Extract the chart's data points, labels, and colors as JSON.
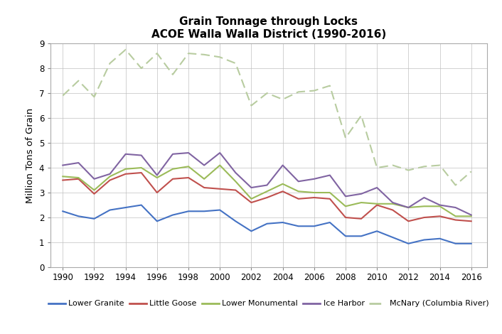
{
  "title_line1": "Grain Tonnage through Locks",
  "title_line2": "ACOE Walla Walla District (1990-2016)",
  "ylabel": "Million Tons of Grain",
  "years": [
    1990,
    1991,
    1992,
    1993,
    1994,
    1995,
    1996,
    1997,
    1998,
    1999,
    2000,
    2001,
    2002,
    2003,
    2004,
    2005,
    2006,
    2007,
    2008,
    2009,
    2010,
    2011,
    2012,
    2013,
    2014,
    2015,
    2016
  ],
  "lower_granite": [
    2.25,
    2.05,
    1.95,
    2.3,
    2.4,
    2.5,
    1.85,
    2.1,
    2.25,
    2.25,
    2.3,
    1.85,
    1.45,
    1.75,
    1.8,
    1.65,
    1.65,
    1.8,
    1.25,
    1.25,
    1.45,
    1.2,
    0.95,
    1.1,
    1.15,
    0.95,
    0.95
  ],
  "little_goose": [
    3.5,
    3.55,
    2.95,
    3.5,
    3.75,
    3.8,
    3.0,
    3.55,
    3.6,
    3.2,
    3.15,
    3.1,
    2.6,
    2.8,
    3.05,
    2.75,
    2.8,
    2.75,
    2.0,
    1.95,
    2.5,
    2.3,
    1.85,
    2.0,
    2.05,
    1.9,
    1.85
  ],
  "lower_monumental": [
    3.65,
    3.6,
    3.1,
    3.65,
    3.95,
    4.0,
    3.6,
    3.95,
    4.05,
    3.55,
    4.1,
    3.45,
    2.75,
    3.05,
    3.35,
    3.05,
    3.0,
    3.0,
    2.45,
    2.6,
    2.55,
    2.55,
    2.4,
    2.45,
    2.45,
    2.05,
    2.05
  ],
  "ice_harbor": [
    4.1,
    4.2,
    3.55,
    3.75,
    4.55,
    4.5,
    3.7,
    4.55,
    4.6,
    4.1,
    4.6,
    3.8,
    3.2,
    3.3,
    4.1,
    3.45,
    3.55,
    3.7,
    2.85,
    2.95,
    3.2,
    2.6,
    2.4,
    2.8,
    2.5,
    2.4,
    2.1
  ],
  "mcnary": [
    6.9,
    7.5,
    6.85,
    8.2,
    8.75,
    8.0,
    8.6,
    7.75,
    8.6,
    8.55,
    8.45,
    8.2,
    6.5,
    7.0,
    6.75,
    7.05,
    7.1,
    7.3,
    5.2,
    6.1,
    4.0,
    4.1,
    3.9,
    4.05,
    4.1,
    3.3,
    3.85
  ],
  "colors": {
    "lower_granite": "#4472C4",
    "little_goose": "#C0504D",
    "lower_monumental": "#9BBB59",
    "ice_harbor": "#8064A2",
    "mcnary": "#B8CCa0"
  },
  "ylim": [
    0,
    9
  ],
  "yticks": [
    0,
    1,
    2,
    3,
    4,
    5,
    6,
    7,
    8,
    9
  ],
  "xticks": [
    1990,
    1992,
    1994,
    1996,
    1998,
    2000,
    2002,
    2004,
    2006,
    2008,
    2010,
    2012,
    2014,
    2016
  ],
  "legend_labels": [
    "Lower Granite",
    "Little Goose",
    "Lower Monumental",
    "Ice Harbor",
    "McNary (Columbia River)"
  ],
  "legend_keys": [
    "lower_granite",
    "little_goose",
    "lower_monumental",
    "ice_harbor",
    "mcnary"
  ]
}
